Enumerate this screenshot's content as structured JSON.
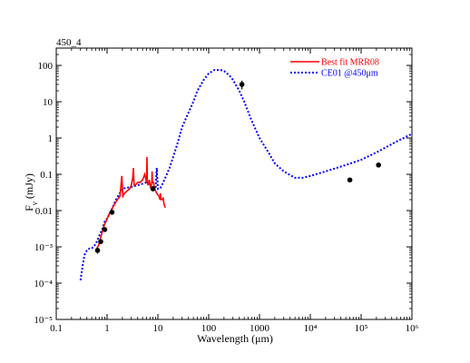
{
  "chart_data": {
    "type": "line",
    "title": "450_4",
    "xlabel": "Wavelength (μm)",
    "ylabel": "F_ν (mJy)",
    "x_scale": "log",
    "y_scale": "log",
    "xlim": [
      0.1,
      1000000
    ],
    "ylim": [
      1e-05,
      300
    ],
    "grid": false,
    "legend_position": "top-right",
    "x_ticks": [
      {
        "value": 0.1,
        "label": "0.1"
      },
      {
        "value": 1,
        "label": "1"
      },
      {
        "value": 10,
        "label": "10"
      },
      {
        "value": 100,
        "label": "100"
      },
      {
        "value": 1000,
        "label": "1000"
      },
      {
        "value": 10000,
        "label": "10⁴"
      },
      {
        "value": 100000,
        "label": "10⁵"
      },
      {
        "value": 1000000,
        "label": "10⁶"
      }
    ],
    "y_ticks": [
      {
        "value": 1e-05,
        "label": "10⁻⁵"
      },
      {
        "value": 0.0001,
        "label": "10⁻⁴"
      },
      {
        "value": 0.001,
        "label": "10⁻³"
      },
      {
        "value": 0.01,
        "label": "0.01"
      },
      {
        "value": 0.1,
        "label": "0.1"
      },
      {
        "value": 1,
        "label": "1"
      },
      {
        "value": 10,
        "label": "10"
      },
      {
        "value": 100,
        "label": "100"
      }
    ],
    "series": [
      {
        "name": "Best fit MRR08",
        "color": "#ff0000",
        "style": "solid",
        "x": [
          0.6,
          0.68,
          0.75,
          0.85,
          0.95,
          1.1,
          1.25,
          1.4,
          1.6,
          1.8,
          1.95,
          2.05,
          2.2,
          2.5,
          2.8,
          3.0,
          3.2,
          3.3,
          3.4,
          3.6,
          4.0,
          4.5,
          5.0,
          5.5,
          6.0,
          6.1,
          6.2,
          6.4,
          6.8,
          7.0,
          7.3,
          7.6,
          7.7,
          7.8,
          8.2,
          8.6,
          9.0,
          9.5,
          10.5,
          11.0,
          11.2,
          11.5,
          12.0,
          12.7,
          13.2,
          14.0
        ],
        "y": [
          0.0008,
          0.0011,
          0.0018,
          0.0035,
          0.005,
          0.008,
          0.011,
          0.015,
          0.02,
          0.025,
          0.09,
          0.025,
          0.03,
          0.035,
          0.04,
          0.05,
          0.08,
          0.15,
          0.05,
          0.05,
          0.06,
          0.06,
          0.07,
          0.1,
          0.06,
          0.3,
          0.06,
          0.05,
          0.07,
          0.05,
          0.04,
          0.06,
          0.12,
          0.06,
          0.06,
          0.04,
          0.035,
          0.03,
          0.025,
          0.02,
          0.03,
          0.02,
          0.02,
          0.022,
          0.015,
          0.012
        ]
      },
      {
        "name": "CE01 @450μm",
        "color": "#0000ff",
        "style": "dotted",
        "x": [
          0.3,
          0.33,
          0.36,
          0.4,
          0.45,
          0.5,
          0.6,
          0.7,
          0.8,
          0.9,
          1.0,
          1.2,
          1.5,
          2.0,
          3.0,
          4.0,
          5.0,
          6.0,
          7.0,
          8.0,
          9.0,
          9.5,
          10.0,
          11.0,
          12.0,
          14.0,
          17.0,
          20.0,
          25.0,
          30.0,
          40.0,
          50.0,
          60.0,
          80.0,
          100.0,
          130.0,
          170.0,
          200.0,
          250.0,
          300.0,
          400.0,
          500.0,
          700.0,
          1000.0,
          1500.0,
          2000.0,
          3000.0,
          5000.0,
          7000.0,
          10000.0,
          20000.0,
          50000.0,
          100000.0,
          200000.0,
          500000.0,
          1000000.0
        ],
        "y": [
          0.00012,
          0.0003,
          0.0006,
          0.0008,
          0.0009,
          0.0009,
          0.0012,
          0.002,
          0.003,
          0.005,
          0.006,
          0.01,
          0.02,
          0.04,
          0.045,
          0.05,
          0.055,
          0.06,
          0.05,
          0.04,
          0.04,
          0.15,
          0.04,
          0.04,
          0.05,
          0.08,
          0.15,
          0.3,
          0.8,
          2,
          5,
          10,
          20,
          40,
          60,
          75,
          75,
          70,
          55,
          40,
          20,
          10,
          3,
          1,
          0.4,
          0.2,
          0.12,
          0.08,
          0.08,
          0.09,
          0.12,
          0.18,
          0.25,
          0.4,
          0.8,
          1.3
        ]
      }
    ],
    "observations": {
      "x": [
        0.65,
        0.75,
        0.9,
        1.25,
        8.0,
        450.0,
        60000.0,
        220000.0
      ],
      "y": [
        0.0008,
        0.0014,
        0.003,
        0.009,
        0.04,
        30.0,
        0.07,
        0.18
      ],
      "yerr": [
        0.00015,
        0.0002,
        0.0004,
        0.001,
        0.006,
        8.0,
        0.0,
        0.0
      ]
    }
  }
}
